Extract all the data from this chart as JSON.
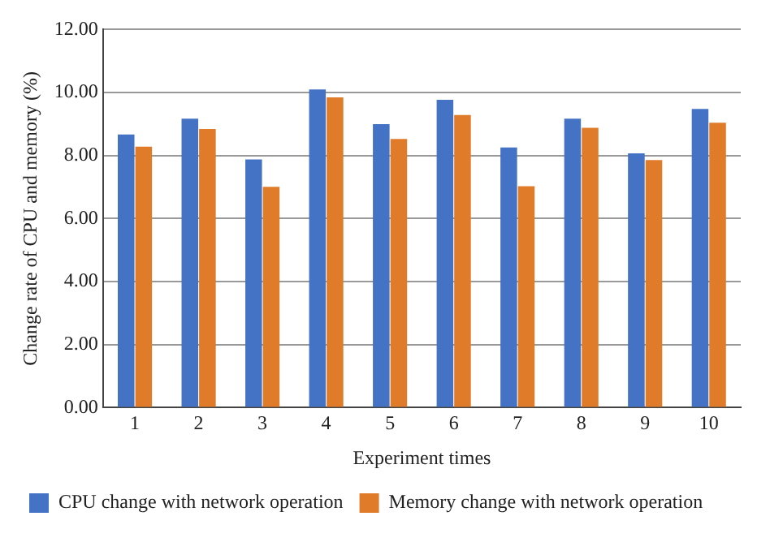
{
  "chart_data": {
    "type": "bar",
    "xlabel": "Experiment times",
    "ylabel": "Change rate of CPU and memory (%)",
    "categories": [
      "1",
      "2",
      "3",
      "4",
      "5",
      "6",
      "7",
      "8",
      "9",
      "10"
    ],
    "series": [
      {
        "name": "CPU change with network operation",
        "color": "#4472c4",
        "values": [
          8.67,
          9.17,
          7.88,
          10.1,
          9.0,
          9.77,
          8.26,
          9.17,
          8.07,
          9.48
        ]
      },
      {
        "name": "Memory change with network operation",
        "color": "#e07b2a",
        "values": [
          8.28,
          8.84,
          7.01,
          9.85,
          8.53,
          9.29,
          7.03,
          8.88,
          7.86,
          9.04
        ]
      }
    ],
    "ylim": [
      0,
      12
    ],
    "yticks": [
      {
        "value": 0,
        "label": "0.00"
      },
      {
        "value": 2,
        "label": "2.00"
      },
      {
        "value": 4,
        "label": "4.00"
      },
      {
        "value": 6,
        "label": "6.00"
      },
      {
        "value": 8,
        "label": "8.00"
      },
      {
        "value": 10,
        "label": "10.00"
      },
      {
        "value": 12,
        "label": "12.00"
      }
    ],
    "grid": "y",
    "legend": "bottom"
  }
}
